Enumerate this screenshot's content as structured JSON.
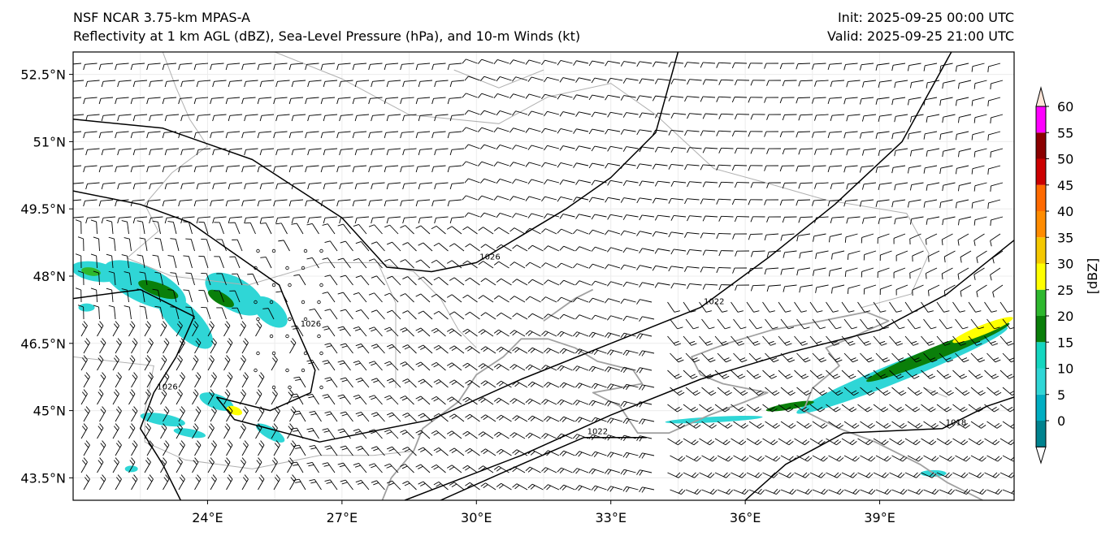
{
  "header": {
    "left_line1": "NSF NCAR 3.75-km MPAS-A",
    "left_line2": "Reflectivity at 1 km AGL (dBZ), Sea-Level Pressure (hPa), and 10-m Winds (kt)",
    "init": "Init: 2025-09-25 00:00 UTC",
    "valid": "Valid: 2025-09-25 21:00 UTC"
  },
  "map": {
    "lon_range": [
      21,
      42
    ],
    "lat_range": [
      43.0,
      53.0
    ],
    "lat_ticks": [
      {
        "value": 52.5,
        "label": "52.5°N"
      },
      {
        "value": 51.0,
        "label": "51°N"
      },
      {
        "value": 49.5,
        "label": "49.5°N"
      },
      {
        "value": 48.0,
        "label": "48°N"
      },
      {
        "value": 46.5,
        "label": "46.5°N"
      },
      {
        "value": 45.0,
        "label": "45°N"
      },
      {
        "value": 43.5,
        "label": "43.5°N"
      }
    ],
    "lon_ticks": [
      {
        "value": 24,
        "label": "24°E"
      },
      {
        "value": 27,
        "label": "27°E"
      },
      {
        "value": 30,
        "label": "30°E"
      },
      {
        "value": 33,
        "label": "33°E"
      },
      {
        "value": 36,
        "label": "36°E"
      },
      {
        "value": 39,
        "label": "39°E"
      }
    ],
    "isobars": [
      {
        "label": "1026",
        "points": [
          [
            21,
            51.5
          ],
          [
            23,
            51.3
          ],
          [
            25,
            50.6
          ],
          [
            27,
            49.3
          ],
          [
            28,
            48.2
          ],
          [
            29,
            48.1
          ],
          [
            30,
            48.3
          ],
          [
            31,
            48.9
          ],
          [
            32,
            49.5
          ],
          [
            33,
            50.2
          ],
          [
            34,
            51.2
          ],
          [
            34.5,
            53
          ]
        ]
      },
      {
        "label": "1026",
        "points": [
          [
            21,
            49.9
          ],
          [
            22.5,
            49.6
          ],
          [
            23.6,
            49.2
          ],
          [
            24.6,
            48.5
          ],
          [
            25.6,
            47.8
          ],
          [
            26,
            46.8
          ],
          [
            26.4,
            45.9
          ],
          [
            26.3,
            45.4
          ],
          [
            25.4,
            45.0
          ],
          [
            24.2,
            45.3
          ]
        ]
      },
      {
        "label": "1026",
        "points": [
          [
            21,
            47.5
          ],
          [
            22.5,
            47.7
          ],
          [
            23.7,
            47.1
          ],
          [
            23.3,
            46.2
          ],
          [
            22.8,
            45.4
          ],
          [
            22.5,
            44.6
          ],
          [
            23.0,
            43.8
          ],
          [
            23.4,
            43.0
          ]
        ]
      },
      {
        "label": "1022",
        "points": [
          [
            24.2,
            45.3
          ],
          [
            24.6,
            44.8
          ],
          [
            26.5,
            44.3
          ],
          [
            29,
            44.8
          ],
          [
            31,
            45.7
          ],
          [
            33,
            46.5
          ],
          [
            35,
            47.3
          ],
          [
            36.5,
            48.4
          ],
          [
            38,
            49.6
          ],
          [
            39.5,
            51
          ],
          [
            40.6,
            53
          ]
        ]
      },
      {
        "label": "",
        "points": [
          [
            28.4,
            43.0
          ],
          [
            31,
            44.0
          ],
          [
            33,
            44.9
          ],
          [
            35,
            45.7
          ],
          [
            37,
            46.3
          ],
          [
            39,
            46.8
          ],
          [
            40.5,
            47.6
          ],
          [
            42,
            48.8
          ]
        ]
      },
      {
        "label": "1022",
        "points": [
          [
            29.2,
            43.0
          ],
          [
            31,
            43.8
          ],
          [
            32.4,
            44.4
          ],
          [
            33.8,
            44.4
          ]
        ]
      },
      {
        "label": "1018",
        "points": [
          [
            36.0,
            43.0
          ],
          [
            36.9,
            43.8
          ],
          [
            38.2,
            44.5
          ],
          [
            40.4,
            44.6
          ],
          [
            41.4,
            45.1
          ],
          [
            42,
            45.3
          ]
        ]
      }
    ],
    "colors": {
      "frame": "#000000",
      "isobar": "#000000",
      "border": "#b0b0b0",
      "coast": "#a0a0a0",
      "grid": "#ececec",
      "barb": "#000000"
    }
  },
  "colorbar": {
    "label": "[dBZ]",
    "ticks": [
      "0",
      "5",
      "10",
      "15",
      "20",
      "25",
      "30",
      "35",
      "40",
      "45",
      "50",
      "55",
      "60"
    ],
    "colors": [
      "#00838f",
      "#00aec2",
      "#2fd6d6",
      "#14d6c0",
      "#0a7f0a",
      "#2eb82e",
      "#ffff00",
      "#f5c800",
      "#ff8c00",
      "#ff6a00",
      "#cc0000",
      "#8b0000",
      "#ff00ff",
      "#ffe6d9"
    ]
  },
  "reflectivity_colors": {
    "light": "#2fd6d6",
    "moderate": "#0a7f0a",
    "heavy": "#2eb82e",
    "intense": "#ffff00"
  }
}
